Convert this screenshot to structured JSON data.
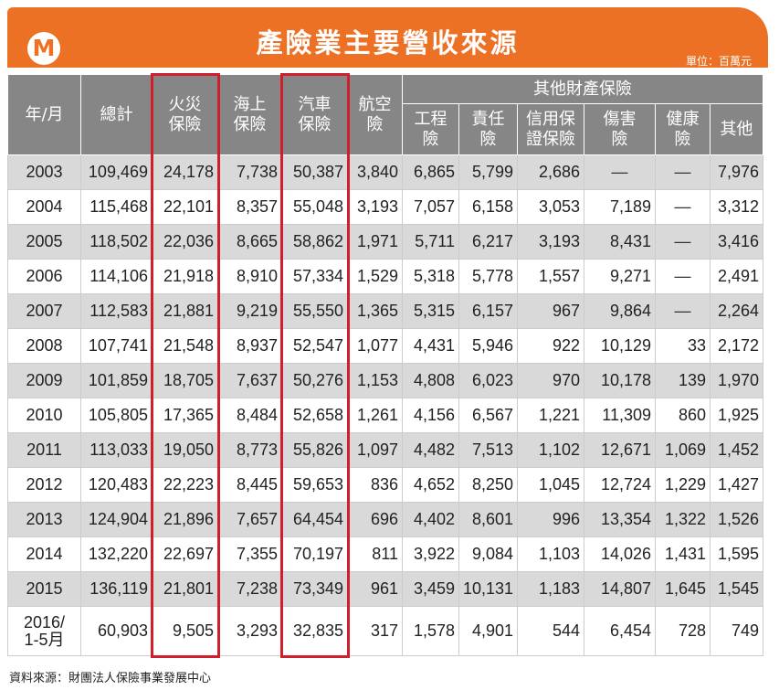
{
  "header": {
    "logo_letter": "M",
    "title": "產險業主要營收來源",
    "unit": "單位：百萬元"
  },
  "colors": {
    "accent": "#ec7125",
    "header_gray": "#868686",
    "row_shade": "#d9d9d9",
    "highlight": "#cf1f2d"
  },
  "table": {
    "group_header": "其他財產保險",
    "columns": [
      "年/月",
      "總計",
      "火災\n保險",
      "海上\n保險",
      "汽車\n保險",
      "航空\n險",
      "工程\n險",
      "責任\n險",
      "信用保\n證保險",
      "傷害\n險",
      "健康\n險",
      "其他"
    ],
    "rows": [
      [
        "2003",
        "109,469",
        "24,178",
        "7,738",
        "50,387",
        "3,840",
        "6,865",
        "5,799",
        "2,686",
        "—",
        "—",
        "7,976"
      ],
      [
        "2004",
        "115,468",
        "22,101",
        "8,357",
        "55,048",
        "3,193",
        "7,057",
        "6,158",
        "3,053",
        "7,189",
        "—",
        "3,312"
      ],
      [
        "2005",
        "118,502",
        "22,036",
        "8,665",
        "58,862",
        "1,971",
        "5,711",
        "6,217",
        "3,193",
        "8,431",
        "—",
        "3,416"
      ],
      [
        "2006",
        "114,106",
        "21,918",
        "8,910",
        "57,334",
        "1,529",
        "5,318",
        "5,778",
        "1,557",
        "9,271",
        "—",
        "2,491"
      ],
      [
        "2007",
        "112,583",
        "21,881",
        "9,219",
        "55,550",
        "1,365",
        "5,315",
        "6,157",
        "967",
        "9,864",
        "—",
        "2,264"
      ],
      [
        "2008",
        "107,741",
        "21,548",
        "8,937",
        "52,547",
        "1,077",
        "4,431",
        "5,946",
        "922",
        "10,129",
        "33",
        "2,172"
      ],
      [
        "2009",
        "101,859",
        "18,705",
        "7,637",
        "50,276",
        "1,153",
        "4,808",
        "6,023",
        "970",
        "10,178",
        "139",
        "1,970"
      ],
      [
        "2010",
        "105,805",
        "17,365",
        "8,484",
        "52,658",
        "1,261",
        "4,156",
        "6,567",
        "1,221",
        "11,309",
        "860",
        "1,925"
      ],
      [
        "2011",
        "113,033",
        "19,050",
        "8,773",
        "55,826",
        "1,097",
        "4,482",
        "7,513",
        "1,102",
        "12,671",
        "1,069",
        "1,452"
      ],
      [
        "2012",
        "120,483",
        "22,223",
        "8,445",
        "59,653",
        "836",
        "4,652",
        "8,250",
        "1,045",
        "12,724",
        "1,229",
        "1,427"
      ],
      [
        "2013",
        "124,904",
        "21,896",
        "7,657",
        "64,454",
        "696",
        "4,402",
        "8,601",
        "996",
        "13,354",
        "1,322",
        "1,526"
      ],
      [
        "2014",
        "132,220",
        "22,697",
        "7,355",
        "70,197",
        "811",
        "3,922",
        "9,084",
        "1,103",
        "14,026",
        "1,431",
        "1,595"
      ],
      [
        "2015",
        "136,119",
        "21,801",
        "7,238",
        "73,349",
        "961",
        "3,459",
        "10,131",
        "1,183",
        "14,807",
        "1,645",
        "1,545"
      ],
      [
        "2016/\n1-5月",
        "60,903",
        "9,505",
        "3,293",
        "32,835",
        "317",
        "1,578",
        "4,901",
        "544",
        "6,454",
        "728",
        "749"
      ]
    ]
  },
  "source": "資料來源：財團法人保險事業發展中心",
  "chart_data": {
    "type": "table",
    "title": "產險業主要營收來源",
    "unit": "單位：百萬元",
    "columns": [
      "年/月",
      "總計",
      "火災保險",
      "海上保險",
      "汽車保險",
      "航空險",
      "工程險",
      "責任險",
      "信用保證保險",
      "傷害險",
      "健康險",
      "其他"
    ],
    "highlighted_columns": [
      "火災保險",
      "汽車保險"
    ],
    "rows": [
      [
        "2003",
        109469,
        24178,
        7738,
        50387,
        3840,
        6865,
        5799,
        2686,
        null,
        null,
        7976
      ],
      [
        "2004",
        115468,
        22101,
        8357,
        55048,
        3193,
        7057,
        6158,
        3053,
        7189,
        null,
        3312
      ],
      [
        "2005",
        118502,
        22036,
        8665,
        58862,
        1971,
        5711,
        6217,
        3193,
        8431,
        null,
        3416
      ],
      [
        "2006",
        114106,
        21918,
        8910,
        57334,
        1529,
        5318,
        5778,
        1557,
        9271,
        null,
        2491
      ],
      [
        "2007",
        112583,
        21881,
        9219,
        55550,
        1365,
        5315,
        6157,
        967,
        9864,
        null,
        2264
      ],
      [
        "2008",
        107741,
        21548,
        8937,
        52547,
        1077,
        4431,
        5946,
        922,
        10129,
        33,
        2172
      ],
      [
        "2009",
        101859,
        18705,
        7637,
        50276,
        1153,
        4808,
        6023,
        970,
        10178,
        139,
        1970
      ],
      [
        "2010",
        105805,
        17365,
        8484,
        52658,
        1261,
        4156,
        6567,
        1221,
        11309,
        860,
        1925
      ],
      [
        "2011",
        113033,
        19050,
        8773,
        55826,
        1097,
        4482,
        7513,
        1102,
        12671,
        1069,
        1452
      ],
      [
        "2012",
        120483,
        22223,
        8445,
        59653,
        836,
        4652,
        8250,
        1045,
        12724,
        1229,
        1427
      ],
      [
        "2013",
        124904,
        21896,
        7657,
        64454,
        696,
        4402,
        8601,
        996,
        13354,
        1322,
        1526
      ],
      [
        "2014",
        132220,
        22697,
        7355,
        70197,
        811,
        3922,
        9084,
        1103,
        14026,
        1431,
        1595
      ],
      [
        "2015",
        136119,
        21801,
        7238,
        73349,
        961,
        3459,
        10131,
        1183,
        14807,
        1645,
        1545
      ],
      [
        "2016/1-5月",
        60903,
        9505,
        3293,
        32835,
        317,
        1578,
        4901,
        544,
        6454,
        728,
        749
      ]
    ]
  }
}
